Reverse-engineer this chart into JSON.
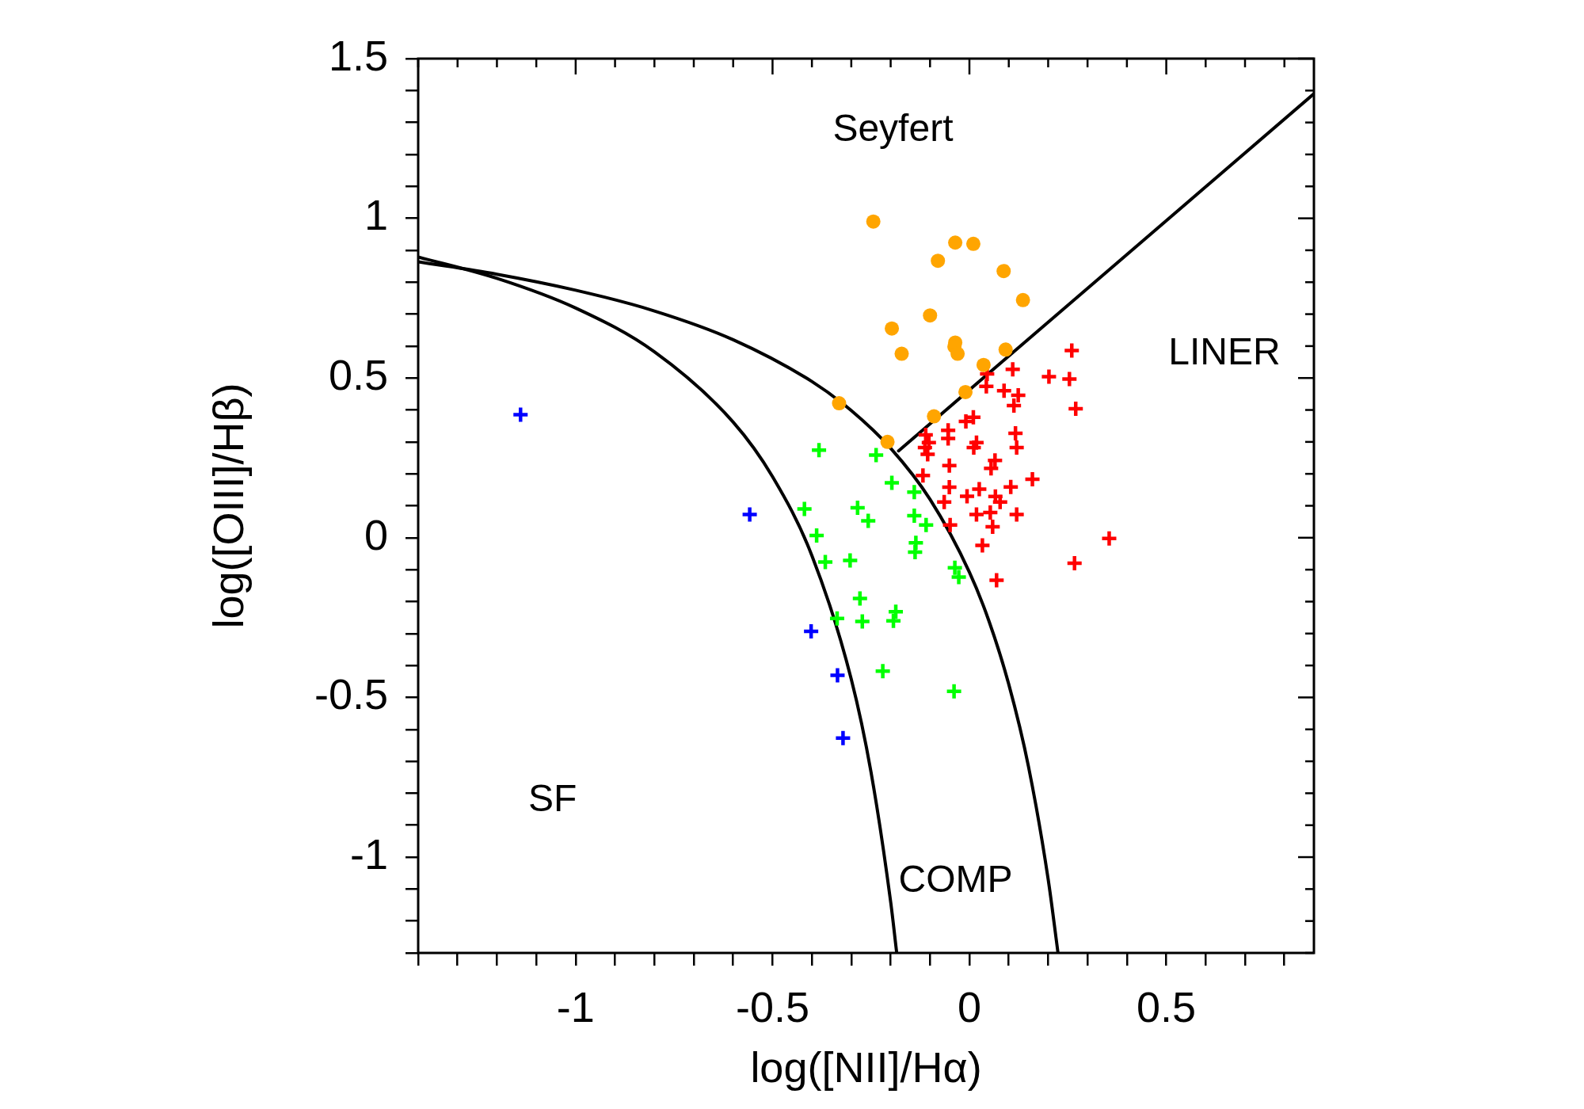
{
  "chart_data": {
    "type": "scatter",
    "xlabel": "log([NII]/Hα)",
    "ylabel": "log([OIII]/Hβ)",
    "xlim": [
      -1.4,
      0.875
    ],
    "ylim": [
      -1.3,
      1.5
    ],
    "xticks": [
      {
        "value": -1.4,
        "label": null
      },
      {
        "value": -1.3,
        "label": null
      },
      {
        "value": -1.2,
        "label": null
      },
      {
        "value": -1.1,
        "label": null
      },
      -1,
      {
        "value": -0.9,
        "label": null
      },
      {
        "value": -0.8,
        "label": null
      },
      {
        "value": -0.7,
        "label": null
      },
      {
        "value": -0.6,
        "label": null
      },
      -0.5,
      {
        "value": -0.4,
        "label": null
      },
      {
        "value": -0.3,
        "label": null
      },
      {
        "value": -0.2,
        "label": null
      },
      {
        "value": -0.1,
        "label": null
      },
      0,
      {
        "value": 0.1,
        "label": null
      },
      {
        "value": 0.2,
        "label": null
      },
      {
        "value": 0.3,
        "label": null
      },
      {
        "value": 0.4,
        "label": null
      },
      0.5,
      {
        "value": 0.6,
        "label": null
      },
      {
        "value": 0.7,
        "label": null
      },
      {
        "value": 0.8,
        "label": null
      }
    ],
    "yticks": [
      {
        "value": -1.3,
        "label": null
      },
      {
        "value": -1.2,
        "label": null
      },
      {
        "value": -1.1,
        "label": null
      },
      -1,
      {
        "value": -0.9,
        "label": null
      },
      {
        "value": -0.8,
        "label": null
      },
      {
        "value": -0.7,
        "label": null
      },
      {
        "value": -0.6,
        "label": null
      },
      -0.5,
      {
        "value": -0.4,
        "label": null
      },
      {
        "value": -0.3,
        "label": null
      },
      {
        "value": -0.2,
        "label": null
      },
      {
        "value": -0.1,
        "label": null
      },
      0,
      {
        "value": 0.1,
        "label": null
      },
      {
        "value": 0.2,
        "label": null
      },
      {
        "value": 0.3,
        "label": null
      },
      {
        "value": 0.4,
        "label": null
      },
      0.5,
      {
        "value": 0.6,
        "label": null
      },
      {
        "value": 0.7,
        "label": null
      },
      {
        "value": 0.8,
        "label": null
      },
      {
        "value": 0.9,
        "label": null
      },
      1,
      {
        "value": 1.1,
        "label": null
      },
      {
        "value": 1.2,
        "label": null
      },
      {
        "value": 1.3,
        "label": null
      },
      {
        "value": 1.4,
        "label": null
      },
      1.5
    ],
    "grid": false,
    "legend": false,
    "series": [
      {
        "type": "line",
        "color": "#000000",
        "marker": "none",
        "x": [
          -1.4,
          -1.2,
          -1.0,
          -0.8,
          -0.6,
          -0.5,
          -0.4,
          -0.3,
          -0.25,
          -0.2,
          -0.185
        ],
        "values": [
          0.879,
          0.812,
          0.719,
          0.582,
          0.362,
          0.191,
          -0.056,
          -0.443,
          -0.733,
          -1.14,
          -1.296
        ]
      },
      {
        "type": "line",
        "color": "#000000",
        "marker": "none",
        "x": [
          -1.4,
          -1.2,
          -1.0,
          -0.8,
          -0.6,
          -0.4,
          -0.3,
          -0.2,
          -0.1,
          0.0,
          0.05,
          0.1,
          0.15,
          0.2,
          0.225
        ],
        "values": [
          0.864,
          0.825,
          0.775,
          0.71,
          0.62,
          0.489,
          0.398,
          0.28,
          0.12,
          -0.108,
          -0.262,
          -0.459,
          -0.716,
          -1.069,
          -1.3
        ]
      },
      {
        "type": "line",
        "color": "#000000",
        "marker": "none",
        "x": [
          -0.18,
          0.875
        ],
        "values": [
          0.272,
          1.39
        ]
      },
      {
        "type": "scatter",
        "color": "#ffa500",
        "marker": "circle",
        "x": [
          -0.244,
          -0.036,
          0.01,
          -0.08,
          0.087,
          0.136,
          -0.1,
          -0.197,
          -0.036,
          -0.038,
          -0.03,
          -0.172,
          0.092,
          0.036,
          -0.01,
          -0.09,
          -0.331,
          -0.208
        ],
        "values": [
          0.99,
          0.924,
          0.92,
          0.867,
          0.835,
          0.744,
          0.696,
          0.655,
          0.611,
          0.598,
          0.576,
          0.576,
          0.589,
          0.541,
          0.456,
          0.38,
          0.421,
          0.3
        ]
      },
      {
        "type": "scatter",
        "color": "#ff0000",
        "marker": "cross",
        "x": [
          0.26,
          0.11,
          0.045,
          0.202,
          0.254,
          0.043,
          0.088,
          0.124,
          0.113,
          0.27,
          0.01,
          -0.009,
          -0.054,
          -0.111,
          -0.054,
          0.117,
          0.018,
          -0.103,
          0.011,
          0.12,
          -0.113,
          -0.106,
          0.065,
          0.055,
          -0.051,
          -0.118,
          0.16,
          -0.051,
          0.025,
          0.105,
          -0.006,
          0.066,
          0.078,
          -0.064,
          0.018,
          0.053,
          0.12,
          -0.049,
          0.059,
          0.355,
          0.033,
          0.267,
          0.069
        ],
        "values": [
          0.586,
          0.527,
          0.513,
          0.504,
          0.497,
          0.474,
          0.46,
          0.446,
          0.414,
          0.404,
          0.377,
          0.364,
          0.336,
          0.322,
          0.311,
          0.327,
          0.298,
          0.298,
          0.282,
          0.282,
          0.282,
          0.261,
          0.242,
          0.217,
          0.226,
          0.195,
          0.183,
          0.158,
          0.152,
          0.159,
          0.13,
          0.129,
          0.112,
          0.112,
          0.073,
          0.079,
          0.073,
          0.04,
          0.034,
          -0.002,
          -0.024,
          -0.08,
          -0.133
        ]
      },
      {
        "type": "scatter",
        "color": "#00ff00",
        "marker": "cross",
        "x": [
          -0.382,
          -0.237,
          -0.197,
          -0.14,
          -0.419,
          -0.284,
          -0.257,
          -0.14,
          -0.11,
          -0.388,
          -0.136,
          -0.138,
          -0.366,
          -0.303,
          -0.037,
          -0.027,
          -0.278,
          -0.187,
          -0.193,
          -0.272,
          -0.336,
          -0.22,
          -0.039
        ],
        "values": [
          0.274,
          0.259,
          0.172,
          0.143,
          0.09,
          0.094,
          0.053,
          0.069,
          0.04,
          0.007,
          -0.016,
          -0.045,
          -0.076,
          -0.071,
          -0.094,
          -0.123,
          -0.19,
          -0.232,
          -0.26,
          -0.262,
          -0.253,
          -0.418,
          -0.481
        ]
      },
      {
        "type": "scatter",
        "color": "#0000ff",
        "marker": "cross",
        "x": [
          -1.14,
          -0.558,
          -0.402,
          -0.335,
          -0.321
        ],
        "values": [
          0.385,
          0.073,
          -0.293,
          -0.431,
          -0.627
        ]
      }
    ],
    "annotations": [
      "Seyfert",
      "LINER",
      "SF",
      "COMP"
    ]
  }
}
